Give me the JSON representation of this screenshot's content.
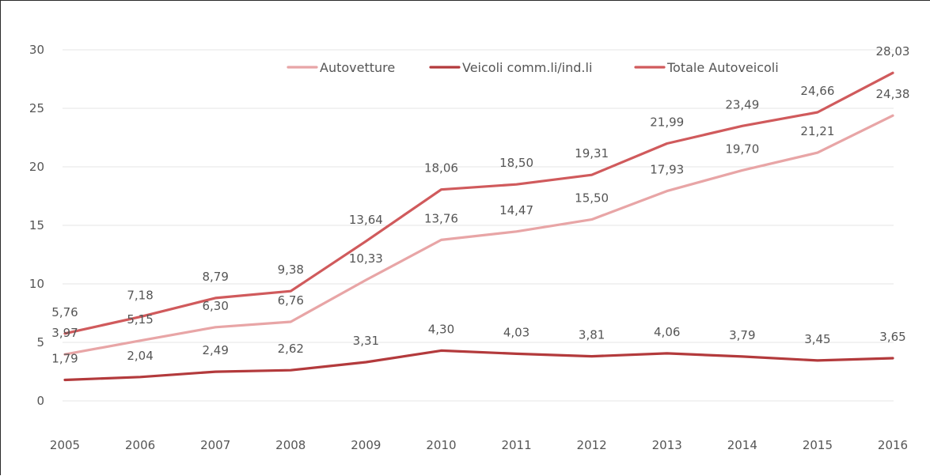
{
  "chart_data": {
    "type": "line",
    "title": "",
    "xlabel": "",
    "ylabel": "",
    "categories": [
      "2005",
      "2006",
      "2007",
      "2008",
      "2009",
      "2010",
      "2011",
      "2012",
      "2013",
      "2014",
      "2015",
      "2016"
    ],
    "ylim": [
      0,
      30
    ],
    "y_ticks": [
      "0",
      "5",
      "10",
      "15",
      "20",
      "25",
      "30"
    ],
    "grid": true,
    "legend_position": "top-right",
    "series": [
      {
        "name": "Autovetture",
        "color": "#e8a5a6",
        "values": [
          3.97,
          5.15,
          6.3,
          6.76,
          10.33,
          13.76,
          14.47,
          15.5,
          17.93,
          19.7,
          21.21,
          24.38
        ],
        "labels": [
          "3,97",
          "5,15",
          "6,30",
          "6,76",
          "10,33",
          "13,76",
          "14,47",
          "15,50",
          "17,93",
          "19,70",
          "21,21",
          "24,38"
        ]
      },
      {
        "name": "Veicoli comm.li/ind.li",
        "color": "#b33a3c",
        "values": [
          1.79,
          2.04,
          2.49,
          2.62,
          3.31,
          4.3,
          4.03,
          3.81,
          4.06,
          3.79,
          3.45,
          3.65
        ],
        "labels": [
          "1,79",
          "2,04",
          "2,49",
          "2,62",
          "3,31",
          "4,30",
          "4,03",
          "3,81",
          "4,06",
          "3,79",
          "3,45",
          "3,65"
        ]
      },
      {
        "name": "Totale Autoveicoli",
        "color": "#d05a5c",
        "values": [
          5.76,
          7.18,
          8.79,
          9.38,
          13.64,
          18.06,
          18.5,
          19.31,
          21.99,
          23.49,
          24.66,
          28.03
        ],
        "labels": [
          "5,76",
          "7,18",
          "8,79",
          "9,38",
          "13,64",
          "18,06",
          "18,50",
          "19,31",
          "21,99",
          "23,49",
          "24,66",
          "28,03"
        ]
      }
    ]
  }
}
